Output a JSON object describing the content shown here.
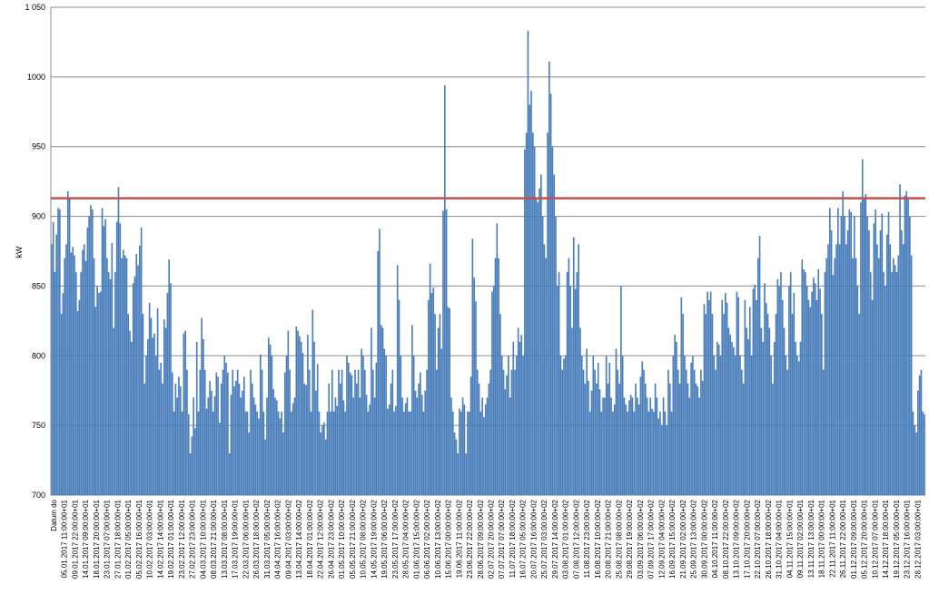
{
  "chart_data": {
    "type": "bar",
    "ylabel": "kW",
    "ylim": [
      700,
      1050
    ],
    "yticks": [
      700,
      750,
      800,
      850,
      900,
      950,
      1000,
      1050
    ],
    "ytick_labels": [
      "700",
      "750",
      "800",
      "850",
      "900",
      "950",
      "1000",
      "1 050"
    ],
    "grid": true,
    "bar_color": "#4a7ebb",
    "threshold": {
      "value": 913,
      "color": "#c0504d"
    },
    "first_category_label": "Datum do",
    "x_tick_labels": [
      "05.01.2017 11:00:00+01",
      "09.01.2017 22:00:00+01",
      "14.01.2017 09:00:00+01",
      "18.01.2017 20:00:00+01",
      "23.01.2017 07:00:00+01",
      "27.01.2017 18:00:00+01",
      "01.02.2017 05:00:00+01",
      "05.02.2017 16:00:00+01",
      "10.02.2017 03:00:00+01",
      "14.02.2017 14:00:00+01",
      "19.02.2017 01:00:00+01",
      "23.02.2017 12:00:00+01",
      "27.02.2017 23:00:00+01",
      "04.03.2017 10:00:00+01",
      "08.03.2017 21:00:00+01",
      "13.03.2017 08:00:00+01",
      "17.03.2017 19:00:00+01",
      "22.03.2017 06:00:00+01",
      "26.03.2017 18:00:00+02",
      "31.03.2017 05:00:00+02",
      "04.04.2017 16:00:00+02",
      "09.04.2017 03:00:00+02",
      "13.04.2017 14:00:00+02",
      "18.04.2017 01:00:00+02",
      "22.04.2017 12:00:00+02",
      "26.04.2017 23:00:00+02",
      "01.05.2017 10:00:00+02",
      "05.05.2017 21:00:00+02",
      "10.05.2017 08:00:00+02",
      "14.05.2017 19:00:00+02",
      "19.05.2017 06:00:00+02",
      "23.05.2017 17:00:00+02",
      "28.05.2017 04:00:00+02",
      "01.06.2017 15:00:00+02",
      "06.06.2017 02:00:00+02",
      "10.06.2017 13:00:00+02",
      "15.06.2017 00:00:00+02",
      "19.06.2017 11:00:00+02",
      "23.06.2017 22:00:00+02",
      "28.06.2017 09:00:00+02",
      "02.07.2017 20:00:00+02",
      "07.07.2017 07:00:00+02",
      "11.07.2017 18:00:00+02",
      "16.07.2017 05:00:00+02",
      "20.07.2017 16:00:00+02",
      "25.07.2017 03:00:00+02",
      "29.07.2017 14:00:00+02",
      "03.08.2017 01:00:00+02",
      "07.08.2017 12:00:00+02",
      "11.08.2017 23:00:00+02",
      "16.08.2017 10:00:00+02",
      "20.08.2017 21:00:00+02",
      "25.08.2017 08:00:00+02",
      "29.08.2017 19:00:00+02",
      "03.09.2017 06:00:00+02",
      "07.09.2017 17:00:00+02",
      "12.09.2017 04:00:00+02",
      "16.09.2017 15:00:00+02",
      "21.09.2017 02:00:00+02",
      "25.09.2017 13:00:00+02",
      "30.09.2017 00:00:00+02",
      "04.10.2017 11:00:00+02",
      "08.10.2017 22:00:00+02",
      "13.10.2017 09:00:00+02",
      "17.10.2017 20:00:00+02",
      "22.10.2017 07:00:00+02",
      "26.10.2017 18:00:00+02",
      "31.10.2017 04:00:00+01",
      "04.11.2017 15:00:00+01",
      "09.11.2017 02:00:00+01",
      "13.11.2017 13:00:00+01",
      "18.11.2017 00:00:00+01",
      "22.11.2017 11:00:00+01",
      "26.11.2017 22:00:00+01",
      "01.12.2017 09:00:00+01",
      "05.12.2017 20:00:00+01",
      "10.12.2017 07:00:00+01",
      "14.12.2017 18:00:00+01",
      "19.12.2017 05:00:00+01",
      "23.12.2017 16:00:00+01",
      "28.12.2017 03:00:00+01"
    ],
    "values": [
      880,
      896,
      860,
      887,
      906,
      905,
      830,
      845,
      870,
      880,
      918,
      913,
      874,
      878,
      872,
      860,
      832,
      840,
      860,
      876,
      880,
      868,
      892,
      900,
      908,
      905,
      870,
      835,
      850,
      845,
      846,
      906,
      893,
      898,
      870,
      860,
      855,
      881,
      820,
      860,
      896,
      921,
      895,
      870,
      876,
      872,
      870,
      830,
      818,
      810,
      852,
      857,
      873,
      865,
      879,
      892,
      830,
      780,
      800,
      812,
      838,
      827,
      813,
      816,
      800,
      834,
      790,
      795,
      780,
      826,
      820,
      845,
      869,
      852,
      788,
      760,
      780,
      770,
      785,
      778,
      760,
      816,
      818,
      790,
      758,
      730,
      742,
      770,
      748,
      810,
      760,
      790,
      827,
      812,
      790,
      762,
      770,
      782,
      775,
      760,
      771,
      788,
      785,
      752,
      780,
      790,
      800,
      795,
      788,
      730,
      772,
      790,
      778,
      782,
      790,
      780,
      770,
      775,
      785,
      760,
      760,
      745,
      790,
      780,
      770,
      765,
      760,
      755,
      801,
      790,
      760,
      740,
      770,
      813,
      808,
      800,
      776,
      770,
      768,
      760,
      755,
      760,
      745,
      788,
      800,
      818,
      790,
      760,
      766,
      770,
      821,
      818,
      814,
      810,
      802,
      780,
      779,
      815,
      790,
      760,
      833,
      810,
      775,
      794,
      760,
      745,
      750,
      752,
      740,
      760,
      780,
      760,
      790,
      760,
      770,
      764,
      790,
      780,
      790,
      768,
      760,
      800,
      795,
      788,
      786,
      770,
      790,
      780,
      790,
      770,
      805,
      800,
      790,
      772,
      760,
      765,
      820,
      790,
      770,
      795,
      875,
      891,
      822,
      820,
      805,
      800,
      762,
      765,
      780,
      790,
      760,
      764,
      865,
      840,
      800,
      770,
      760,
      766,
      770,
      760,
      760,
      822,
      800,
      775,
      770,
      780,
      788,
      772,
      760,
      775,
      790,
      840,
      866,
      845,
      849,
      830,
      790,
      820,
      830,
      805,
      904,
      994,
      905,
      835,
      834,
      770,
      760,
      745,
      740,
      730,
      762,
      760,
      770,
      765,
      730,
      760,
      760,
      785,
      884,
      856,
      839,
      790,
      780,
      760,
      770,
      756,
      765,
      770,
      780,
      790,
      846,
      850,
      870,
      895,
      870,
      830,
      800,
      790,
      776,
      786,
      800,
      770,
      790,
      810,
      790,
      800,
      820,
      810,
      815,
      800,
      948,
      960,
      1033,
      980,
      990,
      960,
      950,
      913,
      910,
      920,
      930,
      900,
      880,
      870,
      960,
      1011,
      988,
      950,
      930,
      900,
      850,
      860,
      800,
      790,
      798,
      800,
      860,
      870,
      850,
      820,
      885,
      848,
      860,
      880,
      820,
      800,
      790,
      780,
      805,
      782,
      760,
      775,
      800,
      790,
      780,
      795,
      776,
      760,
      770,
      770,
      800,
      780,
      795,
      770,
      760,
      765,
      805,
      790,
      780,
      850,
      800,
      770,
      765,
      760,
      768,
      772,
      770,
      760,
      780,
      770,
      765,
      785,
      796,
      790,
      780,
      770,
      760,
      770,
      762,
      760,
      780,
      770,
      755,
      760,
      750,
      770,
      760,
      750,
      790,
      780,
      760,
      800,
      815,
      810,
      790,
      780,
      842,
      830,
      800,
      790,
      780,
      770,
      795,
      800,
      790,
      780,
      778,
      770,
      790,
      782,
      837,
      830,
      846,
      840,
      846,
      830,
      800,
      790,
      810,
      808,
      800,
      840,
      830,
      845,
      838,
      820,
      815,
      810,
      806,
      800,
      846,
      842,
      800,
      790,
      780,
      840,
      820,
      812,
      835,
      800,
      848,
      851,
      840,
      870,
      886,
      820,
      810,
      852,
      838,
      830,
      820,
      800,
      780,
      810,
      830,
      855,
      850,
      860,
      840,
      820,
      800,
      790,
      850,
      860,
      830,
      845,
      810,
      800,
      796,
      810,
      869,
      862,
      860,
      850,
      840,
      835,
      846,
      856,
      852,
      840,
      862,
      848,
      830,
      790,
      860,
      870,
      880,
      906,
      890,
      858,
      870,
      880,
      906,
      880,
      900,
      918,
      900,
      880,
      890,
      905,
      903,
      870,
      900,
      870,
      850,
      830,
      910,
      941,
      913,
      916,
      900,
      890,
      860,
      840,
      895,
      905,
      880,
      870,
      890,
      902,
      860,
      850,
      887,
      903,
      880,
      860,
      870,
      865,
      860,
      872,
      923,
      890,
      880,
      915,
      918,
      912,
      900,
      872,
      760,
      750,
      745,
      775,
      786,
      790,
      760,
      758
    ]
  }
}
